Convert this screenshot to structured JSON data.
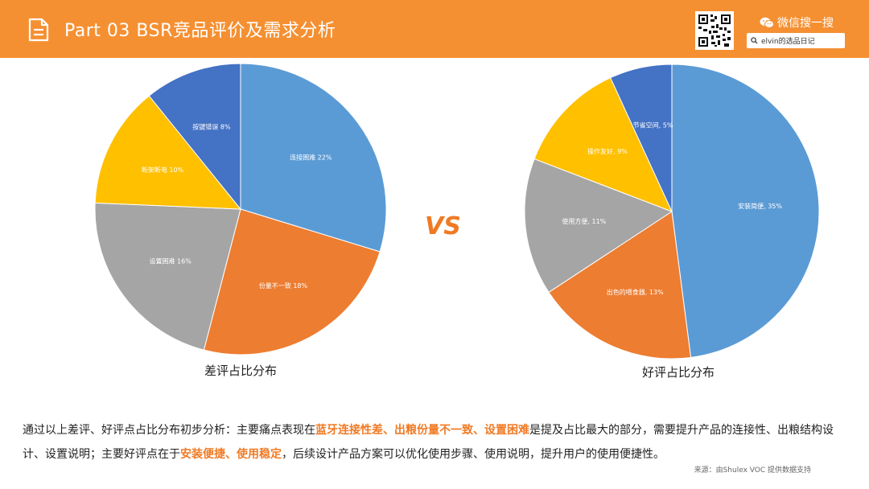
{
  "header": {
    "title": "Part 03  BSR竞品评价及需求分析",
    "wechat_label": "微信搜一搜",
    "search_value": "elvin的选品日记"
  },
  "vs_label": "VS",
  "colors": {
    "header": "#f59032",
    "highlight": "#f07a24"
  },
  "chart_data": [
    {
      "type": "pie",
      "title": "差评占比分布",
      "slices": [
        {
          "label": "连接困难 22%",
          "value": 22,
          "color": "#5b9bd5"
        },
        {
          "label": "份量不一致 18%",
          "value": 18,
          "color": "#ed7d31"
        },
        {
          "label": "设置困难 16%",
          "value": 16,
          "color": "#a5a5a5"
        },
        {
          "label": "断架断电 10%",
          "value": 10,
          "color": "#ffc000"
        },
        {
          "label": "按键错误 8%",
          "value": 8,
          "color": "#4472c4"
        }
      ]
    },
    {
      "type": "pie",
      "title": "好评占比分布",
      "slices": [
        {
          "label": "安装简便, 35%",
          "value": 35,
          "color": "#5b9bd5"
        },
        {
          "label": "出色的喂食器, 13%",
          "value": 13,
          "color": "#ed7d31"
        },
        {
          "label": "使用方便, 11%",
          "value": 11,
          "color": "#a5a5a5"
        },
        {
          "label": "操作友好, 9%",
          "value": 9,
          "color": "#ffc000"
        },
        {
          "label": "节省空间, 5%",
          "value": 5,
          "color": "#4472c4"
        }
      ]
    }
  ],
  "summary": {
    "part1": "通过以上差评、好评点占比分布初步分析：主要痛点表现在",
    "hl1": "蓝牙连接性差、出粮份量不一致、设置困难",
    "part2": "是提及占比最大的部分，需要提升产品的连接性、出粮结构设计、设置说明；主要好评点在于",
    "hl2": "安装便捷、使用稳定",
    "part3": "，后续设计产品方案可以优化使用步骤、使用说明，提升用户的使用便捷性。"
  },
  "source": "来源：由Shulex VOC 提供数据支持"
}
